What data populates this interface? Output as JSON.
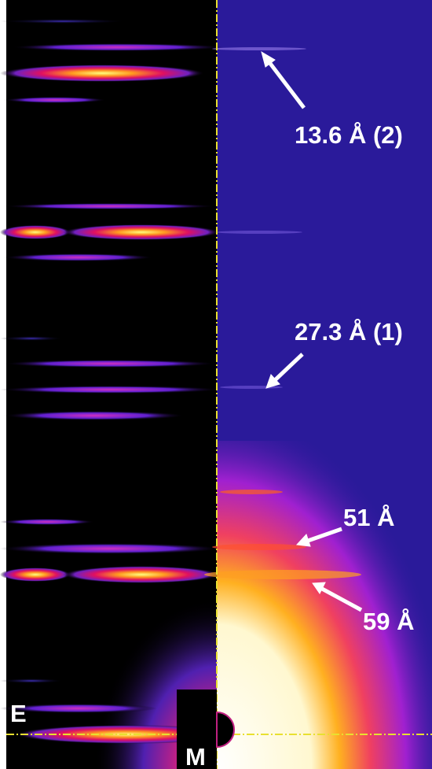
{
  "annotations": {
    "peak_2": "13.6 Å (2)",
    "peak_1": "27.3 Å (1)",
    "peak_51": "51 Å",
    "peak_59": "59 Å"
  },
  "panel_labels": {
    "left": "E",
    "beamstop": "M"
  }
}
